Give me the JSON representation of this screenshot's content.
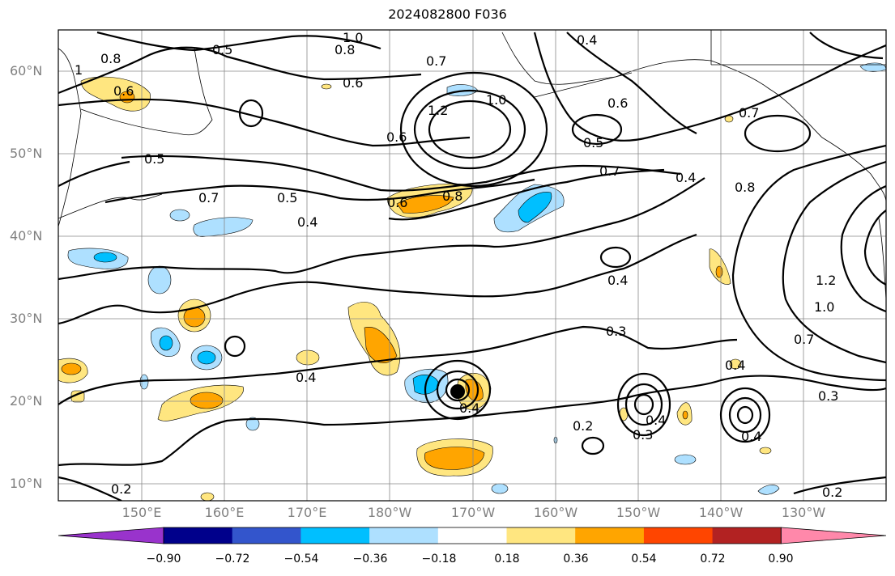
{
  "title": "2024082800 F036",
  "lat_labels": [
    "60°N",
    "50°N",
    "40°N",
    "30°N",
    "20°N",
    "10°N"
  ],
  "lon_labels": [
    "150°E",
    "160°E",
    "170°E",
    "180°W",
    "170°W",
    "160°W",
    "150°W",
    "140°W",
    "130°W"
  ],
  "contour_labels": [
    "0.5",
    "1.0",
    "0.8",
    "0.7",
    "0.4",
    "0.8",
    "1",
    "0.6",
    "0.6",
    "1.2",
    "1.0",
    "0.6",
    "0.5",
    "0.7",
    "0.4",
    "0.7",
    "0.5",
    "0.7",
    "0.5",
    "0.4",
    "0.6",
    "0.8",
    "0.8",
    "0.4",
    "1.2",
    "1.0",
    "0.7",
    "0.4",
    "0.3",
    "0.3",
    "0.4",
    "0.4",
    "0.2",
    "0.3",
    "0.4",
    "0.4",
    "0.2",
    "0.2",
    "0.6"
  ],
  "colorbar": {
    "ticks": [
      "−0.90",
      "−0.72",
      "−0.54",
      "−0.36",
      "−0.18",
      "0.18",
      "0.36",
      "0.54",
      "0.72",
      "0.90"
    ],
    "colors": [
      "#9933cc",
      "#00008b",
      "#3355cc",
      "#00bfff",
      "#aee0ff",
      "#ffffff",
      "#ffe680",
      "#ffa500",
      "#ff4500",
      "#b22222",
      "#ff88aa"
    ]
  },
  "storm_marker": "filled-circle-icon"
}
